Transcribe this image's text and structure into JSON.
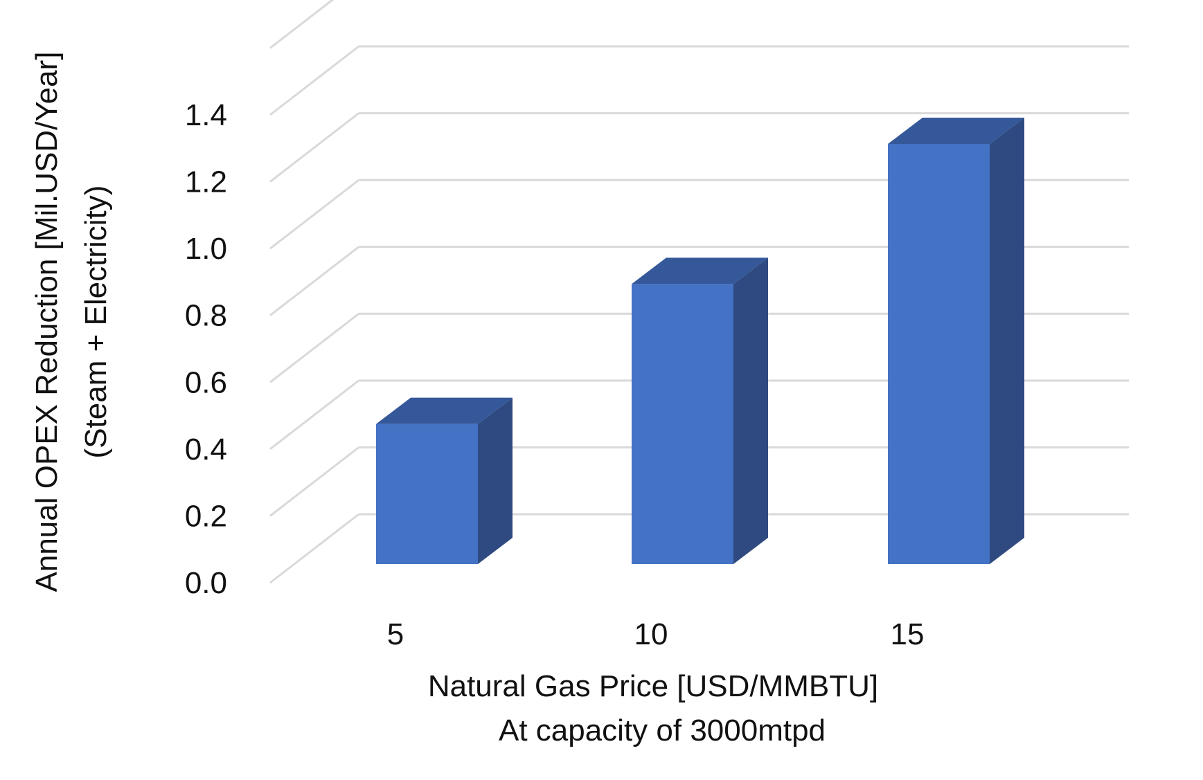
{
  "chart_data": {
    "type": "bar",
    "style": "3d-column",
    "categories": [
      "5",
      "10",
      "15"
    ],
    "values": [
      0.42,
      0.84,
      1.26
    ],
    "title": "",
    "xlabel": "Natural Gas Price [USD/MMBTU]",
    "xlabel_line2": "At capacity of 3000mtpd",
    "ylabel": "Annual OPEX Reduction [Mil.USD/Year]",
    "ylabel_line2": "(Steam + Electricity)",
    "ylim": [
      0,
      1.4
    ],
    "y_ticks": [
      "0.0",
      "0.2",
      "0.4",
      "0.6",
      "0.8",
      "1.0",
      "1.2",
      "1.4"
    ],
    "grid": true,
    "legend": "none",
    "colors": {
      "bar_front": "#4472C4",
      "bar_side": "#2E4A80",
      "bar_top": "#35589A",
      "grid": "#D9D9D9"
    }
  }
}
